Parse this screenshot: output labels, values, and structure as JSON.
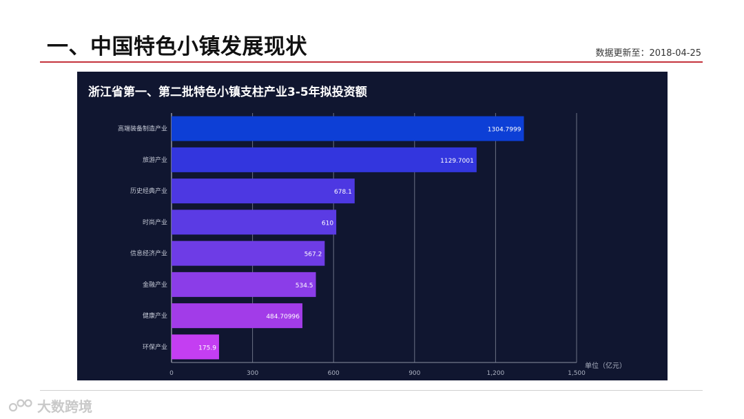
{
  "header": {
    "title": "一、中国特色小镇发展现状",
    "updated": "数据更新至：2018-04-25"
  },
  "footer": {
    "watermark": "大数跨境"
  },
  "colors": {
    "panel_bg": "#101630",
    "accent_red": "#c4323a",
    "bar_gradient": [
      "#0d3fd6",
      "#3336de",
      "#4d38e2",
      "#5b3be4",
      "#6e3ce6",
      "#8b3de8",
      "#a23ce8",
      "#c43ef2"
    ]
  },
  "chart_data": {
    "type": "bar",
    "orientation": "horizontal",
    "title": "浙江省第一、第二批特色小镇支柱产业3-5年拟投资额",
    "unit_label": "单位（亿元）",
    "categories": [
      "高端装备制造产业",
      "旅游产业",
      "历史经典产业",
      "时尚产业",
      "信息经济产业",
      "金融产业",
      "健康产业",
      "环保产业"
    ],
    "values": [
      1304.7999,
      1129.7001,
      678.1,
      610,
      567.2,
      534.5,
      484.70996,
      175.9
    ],
    "value_labels": [
      "1304.7999",
      "1129.7001",
      "678.1",
      "610",
      "567.2",
      "534.5",
      "484.70996",
      "175.9"
    ],
    "xlim": [
      0,
      1500
    ],
    "x_ticks": [
      0,
      300,
      600,
      900,
      1200,
      1500
    ],
    "x_tick_labels": [
      "0",
      "300",
      "600",
      "900",
      "1,200",
      "1,500"
    ],
    "grid": true
  }
}
